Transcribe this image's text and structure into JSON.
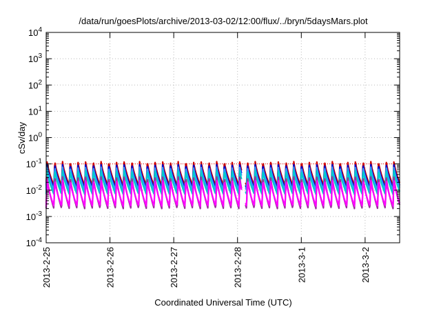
{
  "chart_data": {
    "type": "line",
    "title": "/data/run/goesPlots/archive/2013-03-02/12:00/flux/../bryn/5daysMars.plot",
    "xlabel": "Coordinated Universal Time (UTC)",
    "ylabel": "cSv/day",
    "y_scale": "log",
    "ylim": [
      0.0001,
      10000
    ],
    "xlim": [
      "2013-02-25 00:00",
      "2013-03-02 13:00"
    ],
    "grid": true,
    "x_ticks": [
      "2013-2-25",
      "2013-2-26",
      "2013-2-27",
      "2013-2-28",
      "2013-3-1",
      "2013-3-2"
    ],
    "y_ticks": [
      {
        "value": 0.0001,
        "base": "10",
        "exp": "-4"
      },
      {
        "value": 0.001,
        "base": "10",
        "exp": "-3"
      },
      {
        "value": 0.01,
        "base": "10",
        "exp": "-2"
      },
      {
        "value": 0.1,
        "base": "10",
        "exp": "-1"
      },
      {
        "value": 1,
        "base": "10",
        "exp": "0"
      },
      {
        "value": 10,
        "base": "10",
        "exp": "1"
      },
      {
        "value": 100,
        "base": "10",
        "exp": "2"
      },
      {
        "value": 1000,
        "base": "10",
        "exp": "3"
      },
      {
        "value": 10000,
        "base": "10",
        "exp": "4"
      }
    ],
    "reference_line": {
      "y": 0.1,
      "color": "#ff0000"
    },
    "oscillation_period_hours": 2.9,
    "gap": {
      "start": "2013-02-28 01:30",
      "end": "2013-02-28 03:00"
    },
    "series": [
      {
        "color": "#cc0000",
        "peak": 0.13,
        "trough": 0.015
      },
      {
        "color": "#0000cc",
        "peak": 0.1,
        "trough": 0.012
      },
      {
        "color": "#3399ff",
        "peak": 0.08,
        "trough": 0.01
      },
      {
        "color": "#00cccc",
        "peak": 0.06,
        "trough": 0.007
      },
      {
        "color": "#993399",
        "peak": 0.035,
        "trough": 0.002
      },
      {
        "color": "#ff00ff",
        "peak": 0.025,
        "trough": 0.0025
      }
    ]
  }
}
